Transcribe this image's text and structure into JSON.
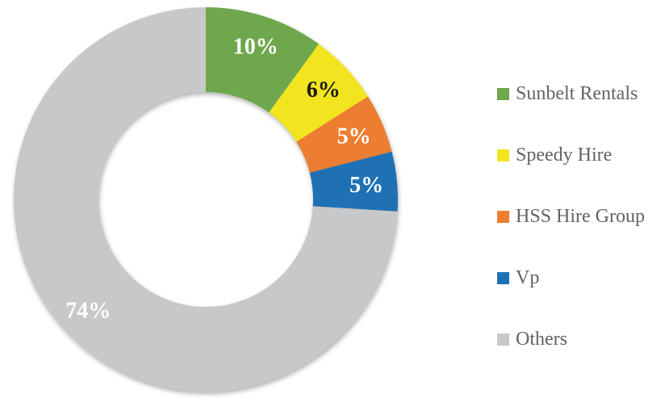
{
  "chart_data": {
    "type": "pie",
    "subtype": "donut",
    "title": "",
    "legend_position": "right",
    "start_angle_deg": 0,
    "direction": "clockwise",
    "hole_ratio": 0.56,
    "categories": [
      "Sunbelt Rentals",
      "Speedy Hire",
      "HSS Hire Group",
      "Vp",
      "Others"
    ],
    "values": [
      10,
      6,
      5,
      5,
      74
    ],
    "segments": [
      {
        "label": "Sunbelt Rentals",
        "value": 10,
        "text": "10%",
        "color": "#6FA74D",
        "text_color": "#FFFFFF"
      },
      {
        "label": "Speedy Hire",
        "value": 6,
        "text": "6%",
        "color": "#F2E41E",
        "text_color": "#1A1A1A"
      },
      {
        "label": "HSS Hire Group",
        "value": 5,
        "text": "5%",
        "color": "#ED7D31",
        "text_color": "#FFFFFF"
      },
      {
        "label": "Vp",
        "value": 5,
        "text": "5%",
        "color": "#1F71B4",
        "text_color": "#FFFFFF"
      },
      {
        "label": "Others",
        "value": 74,
        "text": "74%",
        "color": "#C7C8C9",
        "text_color": "#FFFFFF"
      }
    ]
  },
  "legend": {
    "items": [
      {
        "label": "Sunbelt Rentals",
        "color": "#6FA74D"
      },
      {
        "label": "Speedy Hire",
        "color": "#F2E41E"
      },
      {
        "label": "HSS Hire Group",
        "color": "#ED7D31"
      },
      {
        "label": "Vp",
        "color": "#1F71B4"
      },
      {
        "label": "Others",
        "color": "#C7C8C9"
      }
    ]
  }
}
